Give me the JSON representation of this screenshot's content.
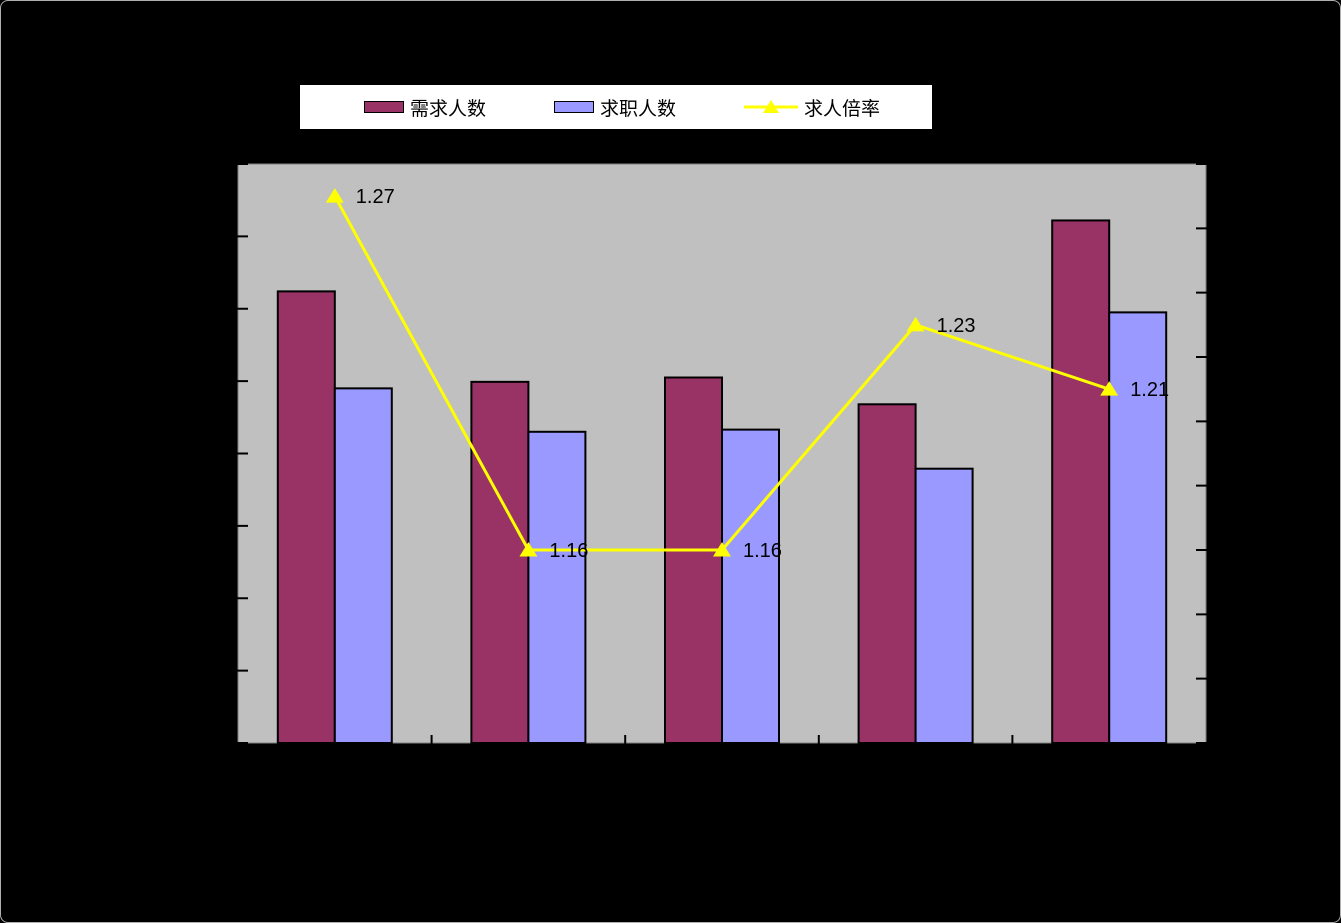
{
  "page": {
    "background": "#000000",
    "frame_border_color": "#b0b0b0"
  },
  "legend": {
    "background": "#FFFFFF",
    "border_color": "#000000",
    "position": "top",
    "items": [
      {
        "label": "需求人数",
        "marker": "bar-swatch",
        "color": "#993366"
      },
      {
        "label": "求职人数",
        "marker": "bar-swatch",
        "color": "#9999FF"
      },
      {
        "label": "求人倍率",
        "marker": "line-triangle",
        "color": "#FFFF00"
      }
    ]
  },
  "chart_data": {
    "type": "bar",
    "subtype": "grouped bars with secondary-axis line overlay (Excel-style combo chart)",
    "plot_background": "#C0C0C0",
    "plot_border_color": "#808080",
    "axis_color": "#000000",
    "bar_border_color": "#000000",
    "data_label_color": "#000000",
    "categories": [
      "",
      "",
      "",
      "",
      ""
    ],
    "notes": "5 category groups. Axis tick labels, category labels and any title are black text on the black page background and therefore not visible in the screenshot. Left axis: 9 ticks / 8 intervals, labels not visible — bar values below are estimated in left-axis tick units. Right axis: 10 ticks / 9 intervals, estimated range 1.10–1.28 (0.02 per tick) derived from the visible line data labels.",
    "series": [
      {
        "name": "需求人数",
        "type": "bar",
        "axis": "left",
        "color": "#993366",
        "values": [
          6.24,
          4.99,
          5.05,
          4.68,
          7.22
        ]
      },
      {
        "name": "求职人数",
        "type": "bar",
        "axis": "left",
        "color": "#9999FF",
        "values": [
          4.9,
          4.3,
          4.33,
          3.79,
          5.95
        ]
      },
      {
        "name": "求人倍率",
        "type": "line",
        "axis": "right",
        "color": "#FFFF00",
        "values": [
          1.27,
          1.16,
          1.16,
          1.23,
          1.21
        ],
        "data_labels": [
          "1.27",
          "1.16",
          "1.16",
          "1.23",
          "1.21"
        ]
      }
    ],
    "left_axis": {
      "tick_count": 9,
      "labels_visible": false
    },
    "right_axis": {
      "tick_count": 10,
      "min": 1.1,
      "max": 1.28,
      "labels_visible": false
    },
    "legend_position": "top",
    "grid": false
  }
}
